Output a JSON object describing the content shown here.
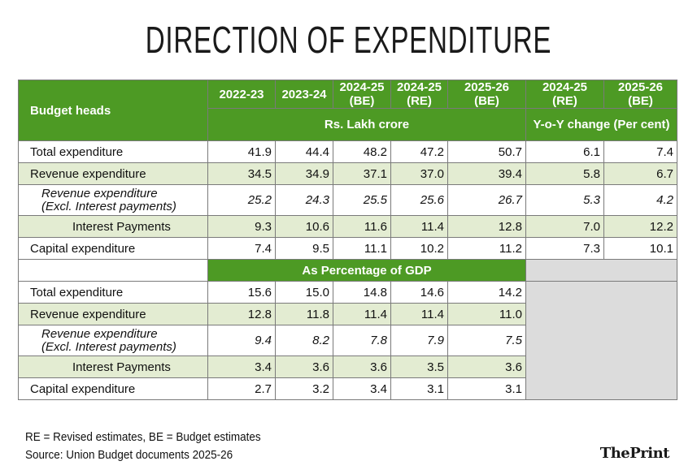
{
  "title": "DIRECTION OF EXPENDITURE",
  "header": {
    "budget_heads": "Budget heads",
    "col1": "2022-23",
    "col2": "2023-24",
    "col3a": "2024-25",
    "col3b": "(BE)",
    "col4a": "2024-25",
    "col4b": "(RE)",
    "col5a": "2025-26",
    "col5b": "(BE)",
    "col6a": "2024-25",
    "col6b": "(RE)",
    "col7a": "2025-26",
    "col7b": "(BE)",
    "unit_lakh": "Rs. Lakh crore",
    "unit_yoy": "Y-o-Y change (Per cent)",
    "gdp_section": "As Percentage of GDP"
  },
  "rows_lakh": [
    {
      "label": "Total expenditure",
      "values": [
        "41.9",
        "44.4",
        "48.2",
        "47.2",
        "50.7",
        "6.1",
        "7.4"
      ]
    },
    {
      "label": "Revenue expenditure",
      "values": [
        "34.5",
        "34.9",
        "37.1",
        "37.0",
        "39.4",
        "5.8",
        "6.7"
      ]
    },
    {
      "label": "Revenue expenditure",
      "label2": "(Excl. Interest payments)",
      "values": [
        "25.2",
        "24.3",
        "25.5",
        "25.6",
        "26.7",
        "5.3",
        "4.2"
      ]
    },
    {
      "label": "Interest Payments",
      "values": [
        "9.3",
        "10.6",
        "11.6",
        "11.4",
        "12.8",
        "7.0",
        "12.2"
      ]
    },
    {
      "label": "Capital expenditure",
      "values": [
        "7.4",
        "9.5",
        "11.1",
        "10.2",
        "11.2",
        "7.3",
        "10.1"
      ]
    }
  ],
  "rows_gdp": [
    {
      "label": "Total expenditure",
      "values": [
        "15.6",
        "15.0",
        "14.8",
        "14.6",
        "14.2"
      ]
    },
    {
      "label": "Revenue expenditure",
      "values": [
        "12.8",
        "11.8",
        "11.4",
        "11.4",
        "11.0"
      ]
    },
    {
      "label": "Revenue expenditure",
      "label2": "(Excl. Interest payments)",
      "values": [
        "9.4",
        "8.2",
        "7.8",
        "7.9",
        "7.5"
      ]
    },
    {
      "label": "Interest Payments",
      "values": [
        "3.4",
        "3.6",
        "3.6",
        "3.5",
        "3.6"
      ]
    },
    {
      "label": "Capital expenditure",
      "values": [
        "2.7",
        "3.2",
        "3.4",
        "3.1",
        "3.1"
      ]
    }
  ],
  "footnote": "RE = Revised estimates, BE = Budget estimates",
  "source": "Source: Union Budget documents 2025-26",
  "logo": "ThePrint"
}
